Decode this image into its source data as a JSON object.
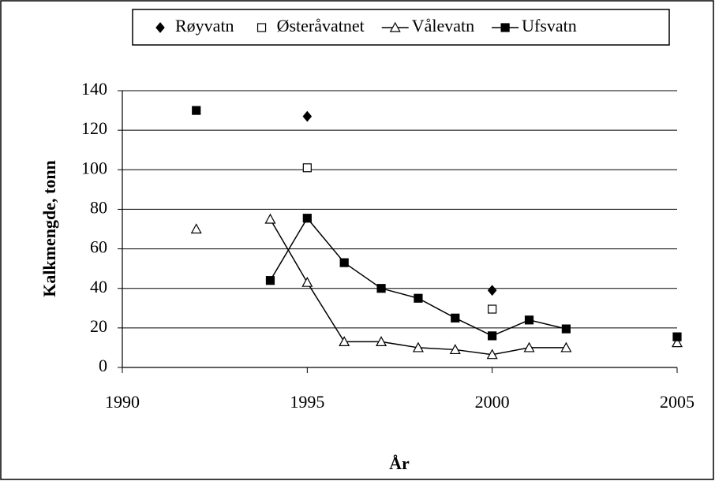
{
  "chart_data": {
    "type": "line",
    "xlabel": "År",
    "ylabel": "Kalkmengde, tonn",
    "xlim": [
      1990,
      2005
    ],
    "xticks": [
      1990,
      1995,
      2000,
      2005
    ],
    "ylim": [
      0,
      140
    ],
    "yticks": [
      0,
      20,
      40,
      60,
      80,
      100,
      120,
      140
    ],
    "grid": true,
    "legend": "top",
    "series": [
      {
        "name": "Røyvatn",
        "color": "#000000",
        "marker": "diamond",
        "line": false,
        "x": [
          1995,
          2000
        ],
        "values": [
          127,
          39
        ]
      },
      {
        "name": "Østeråvatnet",
        "color": "#000000",
        "marker": "open-square",
        "line": false,
        "x": [
          1995,
          2000
        ],
        "values": [
          101,
          29.5
        ]
      },
      {
        "name": "Vålevatn",
        "color": "#000000",
        "marker": "open-triangle",
        "line": true,
        "x": [
          1992,
          1993,
          1994,
          1995,
          1996,
          1997,
          1998,
          1999,
          2000,
          2001,
          2002,
          2003,
          2005
        ],
        "values": [
          70,
          null,
          75,
          43,
          13,
          13,
          10,
          9,
          6.5,
          10,
          10,
          null,
          12.5
        ]
      },
      {
        "name": "Ufsvatn",
        "color": "#000000",
        "marker": "square",
        "line": true,
        "x": [
          1992,
          1993,
          1994,
          1995,
          1996,
          1997,
          1998,
          1999,
          2000,
          2001,
          2002,
          2003,
          2005
        ],
        "values": [
          130,
          null,
          44,
          75.5,
          53,
          40,
          35,
          25,
          16,
          24,
          19.5,
          null,
          15.5
        ]
      }
    ]
  }
}
